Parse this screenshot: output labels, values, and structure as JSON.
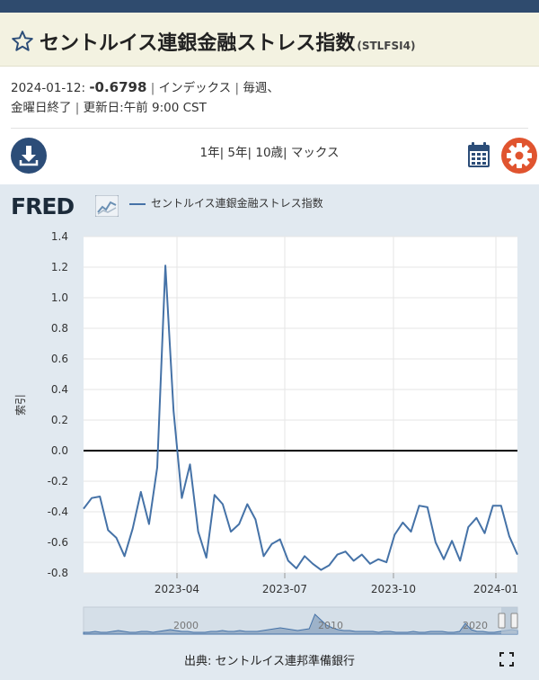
{
  "header": {
    "title": "セントルイス連銀金融ストレス指数",
    "series_id": "(STLFSI4)"
  },
  "meta": {
    "date": "2024-01-12:",
    "value": "-0.6798",
    "units": "インデックス",
    "frequency": "毎週、",
    "frequency_detail": "金曜日終了",
    "updated_label": "更新日:",
    "updated_value": "午前 9:00 CST"
  },
  "ranges": [
    "1年",
    "5年",
    "10歳",
    "マックス"
  ],
  "chart": {
    "logo": "FRED",
    "legend": "セントルイス連銀金融ストレス指数",
    "source": "出典: セントルイス連邦準備銀行"
  },
  "chart_data": {
    "type": "line",
    "ylabel": "索引",
    "ylim": [
      -0.8,
      1.4
    ],
    "yticks": [
      "1.4",
      "1.2",
      "1.0",
      "0.8",
      "0.6",
      "0.4",
      "0.2",
      "0.0",
      "-0.2",
      "-0.4",
      "-0.6",
      "-0.8"
    ],
    "xticks": [
      "2023-04",
      "2023-07",
      "2023-10",
      "2024-01"
    ],
    "zero_line": true,
    "series": [
      {
        "color": "#4572a7",
        "values": [
          -0.38,
          -0.31,
          -0.3,
          -0.52,
          -0.57,
          -0.69,
          -0.51,
          -0.27,
          -0.48,
          -0.11,
          1.21,
          0.26,
          -0.31,
          -0.09,
          -0.53,
          -0.7,
          -0.29,
          -0.35,
          -0.53,
          -0.48,
          -0.35,
          -0.45,
          -0.69,
          -0.61,
          -0.58,
          -0.72,
          -0.77,
          -0.69,
          -0.74,
          -0.78,
          -0.75,
          -0.68,
          -0.66,
          -0.72,
          -0.68,
          -0.74,
          -0.71,
          -0.73,
          -0.55,
          -0.47,
          -0.53,
          -0.36,
          -0.37,
          -0.6,
          -0.71,
          -0.59,
          -0.72,
          -0.5,
          -0.44,
          -0.54,
          -0.36,
          -0.36,
          -0.56,
          -0.68
        ]
      }
    ],
    "navigator_labels": [
      "2000",
      "2010",
      "2020"
    ]
  },
  "colors": {
    "topbar": "#2f4b6e",
    "title_bg": "#f3f2e1",
    "download": "#2c4d78",
    "gear": "#e0542f",
    "panel": "#e1e9f0",
    "series": "#4572a7"
  }
}
